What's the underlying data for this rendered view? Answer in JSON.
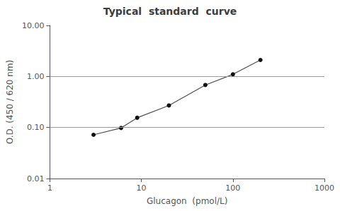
{
  "chart_data": {
    "type": "line",
    "title": "Typical  standard  curve",
    "xlabel": "Glucagon  (pmol/L)",
    "ylabel": "O.D. (450 / 620 nm)",
    "x": [
      3,
      6,
      9,
      20,
      50,
      100,
      200
    ],
    "values": [
      0.072,
      0.098,
      0.155,
      0.27,
      0.68,
      1.1,
      2.1
    ],
    "xlim": [
      1,
      1000
    ],
    "ylim": [
      0.01,
      10.0
    ],
    "xticks": [
      1,
      10,
      100,
      1000
    ],
    "yticks": [
      0.01,
      {
        "value": 0.1,
        "label": "0.10"
      },
      {
        "value": 1.0,
        "label": "1.00"
      },
      {
        "value": 10.0,
        "label": "10.00"
      }
    ],
    "hlines": [
      0.1,
      1.0
    ],
    "log": true,
    "grid": false,
    "color": "#111111",
    "marker": "circle"
  }
}
